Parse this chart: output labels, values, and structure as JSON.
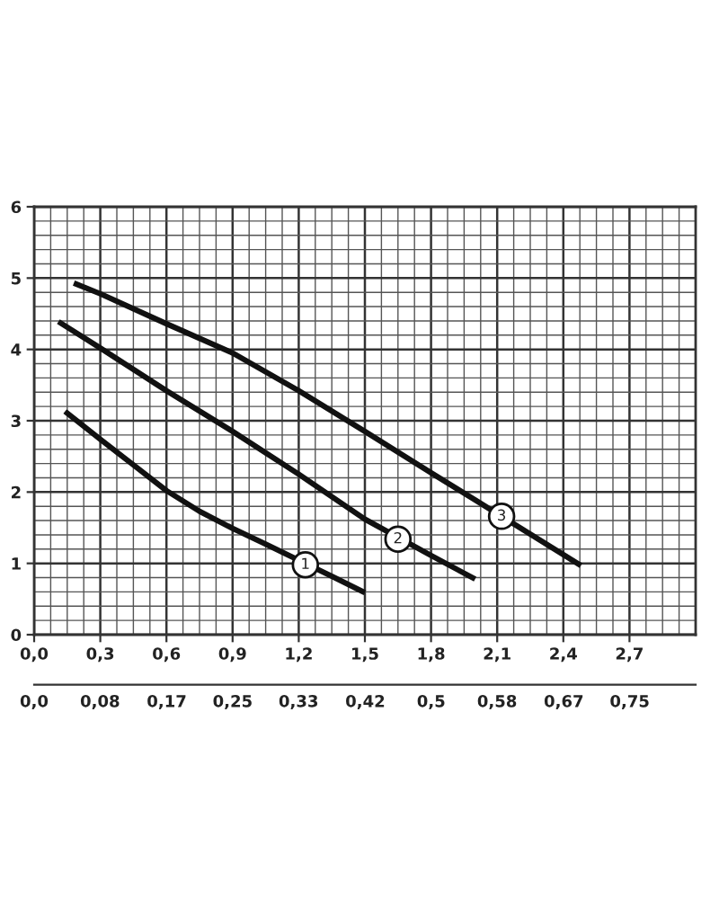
{
  "chart_data": {
    "type": "line",
    "xlim": [
      0,
      3
    ],
    "ylim": [
      0,
      6
    ],
    "xticks": [
      {
        "value": 0,
        "label": "0,0"
      },
      {
        "value": 0.3,
        "label": "0,3"
      },
      {
        "value": 0.6,
        "label": "0,6"
      },
      {
        "value": 0.9,
        "label": "0,9"
      },
      {
        "value": 1.2,
        "label": "1,2"
      },
      {
        "value": 1.5,
        "label": "1,5"
      },
      {
        "value": 1.8,
        "label": "1,8"
      },
      {
        "value": 2.1,
        "label": "2,1"
      },
      {
        "value": 2.4,
        "label": "2,4"
      },
      {
        "value": 2.7,
        "label": "2,7"
      }
    ],
    "yticks": [
      0,
      1,
      2,
      3,
      4,
      5,
      6
    ],
    "x2lim": [
      0,
      0.833
    ],
    "x2ticks": [
      {
        "value": 0,
        "label": "0,0"
      },
      {
        "value": 0.083,
        "label": "0,08"
      },
      {
        "value": 0.167,
        "label": "0,17"
      },
      {
        "value": 0.25,
        "label": "0,25"
      },
      {
        "value": 0.333,
        "label": "0,33"
      },
      {
        "value": 0.417,
        "label": "0,42"
      },
      {
        "value": 0.5,
        "label": "0,5"
      },
      {
        "value": 0.583,
        "label": "0,58"
      },
      {
        "value": 0.667,
        "label": "0,67"
      },
      {
        "value": 0.75,
        "label": "0,75"
      }
    ],
    "grid": true,
    "series": [
      {
        "color": "#111111",
        "x": [
          0.14,
          0.3,
          0.45,
          0.6,
          0.75,
          0.9,
          1.05,
          1.35,
          1.5
        ],
        "values": [
          3.13,
          2.74,
          2.38,
          2.02,
          1.73,
          1.49,
          1.27,
          0.82,
          0.59
        ]
      },
      {
        "color": "#111111",
        "x": [
          0.11,
          0.3,
          0.6,
          0.9,
          1.2,
          1.5,
          1.8,
          2.0
        ],
        "values": [
          4.39,
          4.02,
          3.42,
          2.85,
          2.25,
          1.62,
          1.11,
          0.78
        ]
      },
      {
        "color": "#111111",
        "x": [
          0.18,
          0.3,
          0.6,
          0.9,
          1.2,
          1.5,
          1.8,
          2.0,
          2.25,
          2.48
        ],
        "values": [
          4.93,
          4.78,
          4.36,
          3.95,
          3.42,
          2.85,
          2.27,
          1.89,
          1.41,
          0.97
        ]
      }
    ],
    "annotations": [
      {
        "text": "1",
        "x": 1.23,
        "y": 0.98
      },
      {
        "text": "2",
        "x": 1.65,
        "y": 1.34
      },
      {
        "text": "3",
        "x": 2.12,
        "y": 1.66
      }
    ]
  }
}
